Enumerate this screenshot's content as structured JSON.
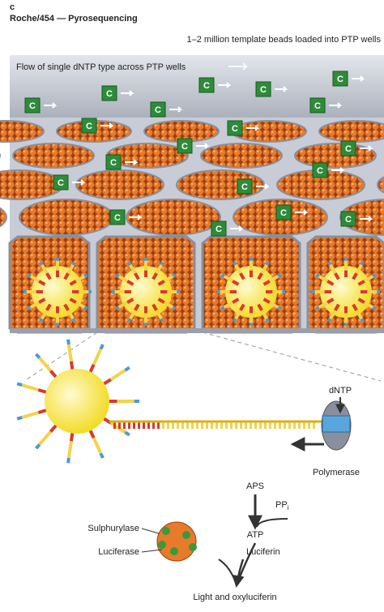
{
  "header": {
    "panel": "c",
    "title": "Roche/454 — Pyrosequencing",
    "subtitle": "1–2 million template beads loaded into PTP wells"
  },
  "flow_label": "Flow of single dNTP type across PTP wells",
  "nucleotide": "C",
  "labels": {
    "dntp": "dNTP",
    "polymerase": "Polymerase",
    "aps": "APS",
    "ppi": "PP",
    "ppi_sub": "i",
    "atp": "ATP",
    "sulphurylase": "Sulphurylase",
    "luciferase": "Luciferase",
    "luciferin": "Luciferin",
    "product": "Light and oxyluciferin"
  }
}
